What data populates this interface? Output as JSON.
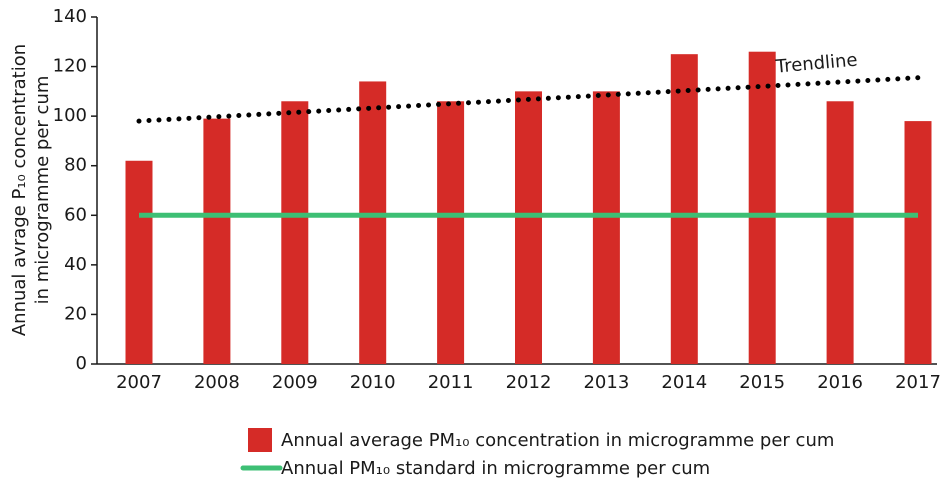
{
  "chart_data": {
    "type": "bar",
    "y_label": [
      "Annual avrage P₁₀ concentration",
      "in microgramme per cum"
    ],
    "categories": [
      "2007",
      "2008",
      "2009",
      "2010",
      "2011",
      "2012",
      "2013",
      "2014",
      "2015",
      "2016",
      "2017"
    ],
    "series": [
      {
        "name": "Annual average PM₁₀ concentration in microgramme per cum",
        "type": "bar",
        "color": "#d52b27",
        "values": [
          82,
          99,
          106,
          114,
          106,
          110,
          110,
          125,
          126,
          106,
          98
        ]
      },
      {
        "name": "Annual PM₁₀ standard in microgramme per cum",
        "type": "line",
        "color": "#3dbf74",
        "values": [
          60,
          60,
          60,
          60,
          60,
          60,
          60,
          60,
          60,
          60,
          60
        ]
      },
      {
        "name": "Trendline",
        "type": "dotted",
        "color": "#000000",
        "values": [
          98,
          99.75,
          101.5,
          103.25,
          105,
          106.75,
          108.5,
          110.25,
          112,
          113.75,
          115.5
        ]
      }
    ],
    "ylim": [
      0,
      140
    ],
    "yticks": [
      0,
      20,
      40,
      60,
      80,
      100,
      120,
      140
    ]
  }
}
